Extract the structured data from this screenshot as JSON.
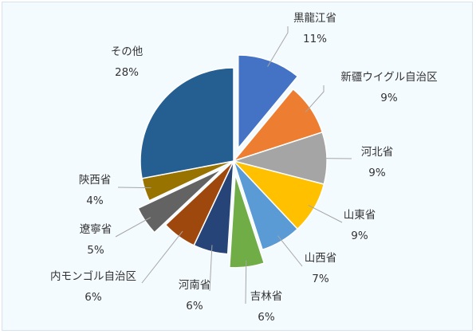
{
  "chart_data": {
    "type": "pie",
    "title": "",
    "exploded": [
      "黒龍江省",
      "吉林省",
      "遼寧省"
    ],
    "slices": [
      {
        "name": "黒龍江省",
        "value": 11,
        "label": "11%",
        "color": "#4472c4"
      },
      {
        "name": "新疆ウイグル自治区",
        "value": 9,
        "label": "9%",
        "color": "#ed7d31"
      },
      {
        "name": "河北省",
        "value": 9,
        "label": "9%",
        "color": "#a5a5a5"
      },
      {
        "name": "山東省",
        "value": 9,
        "label": "9%",
        "color": "#ffc000"
      },
      {
        "name": "山西省",
        "value": 7,
        "label": "7%",
        "color": "#5b9bd5"
      },
      {
        "name": "吉林省",
        "value": 6,
        "label": "6%",
        "color": "#70ad47"
      },
      {
        "name": "河南省",
        "value": 6,
        "label": "6%",
        "color": "#264478"
      },
      {
        "name": "内モンゴル自治区",
        "value": 6,
        "label": "6%",
        "color": "#9e480e"
      },
      {
        "name": "遼寧省",
        "value": 5,
        "label": "5%",
        "color": "#636363"
      },
      {
        "name": "陝西省",
        "value": 4,
        "label": "4%",
        "color": "#997300"
      },
      {
        "name": "その他",
        "value": 28,
        "label": "28%",
        "color": "#255e91"
      }
    ]
  }
}
